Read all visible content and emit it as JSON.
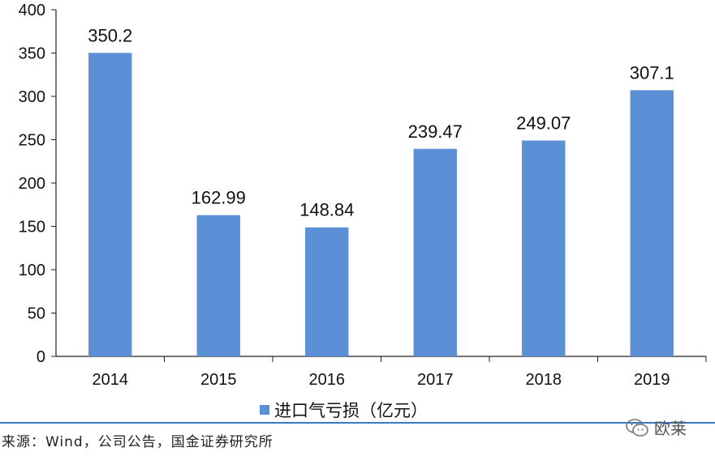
{
  "chart_data": {
    "type": "bar",
    "title": "",
    "xlabel": "",
    "ylabel": "",
    "categories": [
      "2014",
      "2015",
      "2016",
      "2017",
      "2018",
      "2019"
    ],
    "series": [
      {
        "name": "进口气亏损（亿元）",
        "values": [
          350.2,
          162.99,
          148.84,
          239.47,
          249.07,
          307.1
        ],
        "labels": [
          "350.2",
          "162.99",
          "148.84",
          "239.47",
          "249.07",
          "307.1"
        ]
      }
    ],
    "ylim": [
      0,
      400
    ],
    "yticks": [
      0,
      50,
      100,
      150,
      200,
      250,
      300,
      350,
      400
    ],
    "grid": false,
    "legend_position": "bottom",
    "bar_color": "#5b8fd6"
  },
  "legend": {
    "label": "进口气亏损（亿元）",
    "color": "#5b8fd6"
  },
  "footer": {
    "source": "来源：Wind，公司公告，国金证券研究所",
    "watermark": "欧莱"
  },
  "colors": {
    "divider": "#3d79c9",
    "axis": "#222222"
  }
}
